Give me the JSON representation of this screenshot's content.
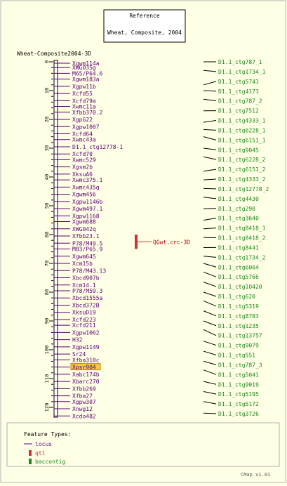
{
  "reference": {
    "heading": "Reference",
    "subtitle": "Wheat, Composite, 2004"
  },
  "map": {
    "title": "Wheat-Composite2004-3D",
    "scale_min": 0,
    "scale_max": 120,
    "ticks": [
      "0",
      "10",
      "20",
      "30",
      "40",
      "50",
      "60",
      "70",
      "80",
      "90",
      "100",
      "110",
      "120"
    ]
  },
  "loci": [
    {
      "name": "Xgwm114a",
      "pos": 0.5
    },
    {
      "name": "XWG035g",
      "pos": 2.0
    },
    {
      "name": "M65/P64.6",
      "pos": 4.0
    },
    {
      "name": "Xgwm183a",
      "pos": 6.0
    },
    {
      "name": "Xgpw11b",
      "pos": 8.5
    },
    {
      "name": "Xcfd55",
      "pos": 11.0
    },
    {
      "name": "Xcfd79a",
      "pos": 13.5
    },
    {
      "name": "Xwmc11a",
      "pos": 15.5
    },
    {
      "name": "Xfbb370.2",
      "pos": 17.5
    },
    {
      "name": "XgpG22",
      "pos": 20.0
    },
    {
      "name": "Xgpw1007",
      "pos": 22.5
    },
    {
      "name": "Xcfd64",
      "pos": 25.0
    },
    {
      "name": "Xwmc43a",
      "pos": 27.0
    },
    {
      "name": "D1.1_ctg12778-1",
      "pos": 29.5
    },
    {
      "name": "Xcfd70",
      "pos": 32.0
    },
    {
      "name": "Xwmc529",
      "pos": 34.0
    },
    {
      "name": "Xgsm2b",
      "pos": 36.5
    },
    {
      "name": "XksuA6",
      "pos": 39.0
    },
    {
      "name": "Xwmc375.1",
      "pos": 41.0
    },
    {
      "name": "Xwmc435g",
      "pos": 43.5
    },
    {
      "name": "Xgwm456",
      "pos": 46.0
    },
    {
      "name": "Xgpw1146b",
      "pos": 48.5
    },
    {
      "name": "Xgwm497.1",
      "pos": 51.0
    },
    {
      "name": "Xgpw1168",
      "pos": 53.5
    },
    {
      "name": "Xgwm688",
      "pos": 55.5
    },
    {
      "name": "XWG042q",
      "pos": 58.0
    },
    {
      "name": "Xfbb23.1",
      "pos": 60.5
    },
    {
      "name": "P78/M49.5",
      "pos": 63.0
    },
    {
      "name": "M83/P65.9",
      "pos": 65.0
    },
    {
      "name": "Xgwm645",
      "pos": 67.5
    },
    {
      "name": "Xcm15b",
      "pos": 70.0
    },
    {
      "name": "P78/M43.13",
      "pos": 72.5
    },
    {
      "name": "Xbcd907b",
      "pos": 75.0
    },
    {
      "name": "Xcm14.1",
      "pos": 77.5
    },
    {
      "name": "P78/M59.3",
      "pos": 79.5
    },
    {
      "name": "Xbcd1555a",
      "pos": 82.0
    },
    {
      "name": "Xbcd372B",
      "pos": 84.5
    },
    {
      "name": "XksuD19",
      "pos": 87.0
    },
    {
      "name": "Xcfd223",
      "pos": 89.5
    },
    {
      "name": "Xcfd211",
      "pos": 91.5
    },
    {
      "name": "Xgpw1062",
      "pos": 94.0
    },
    {
      "name": "H32",
      "pos": 96.5
    },
    {
      "name": "Xgpw1149",
      "pos": 99.0
    },
    {
      "name": "Sr24",
      "pos": 101.5
    },
    {
      "name": "Xfba310c",
      "pos": 103.5
    },
    {
      "name": "Xpsr904",
      "pos": 106.0,
      "highlight": true
    },
    {
      "name": "Xabc174b",
      "pos": 108.5
    },
    {
      "name": "Xbarc270",
      "pos": 111.0
    },
    {
      "name": "Xfbb269",
      "pos": 113.5
    },
    {
      "name": "Xfba27",
      "pos": 116.0
    },
    {
      "name": "Xgpw307",
      "pos": 118.0
    },
    {
      "name": "Xnwg12",
      "pos": 120.5
    },
    {
      "name": "Xcdo482",
      "pos": 123.0
    }
  ],
  "qtl": {
    "name": "QGwt.crc-3D",
    "start": 60.0,
    "end": 65.0
  },
  "contigs": [
    {
      "name": "D1.1_ctg787_1",
      "pos": 0.0
    },
    {
      "name": "D1.1_ctg1734_1",
      "pos": 3.0
    },
    {
      "name": "D1.1_ctg5743",
      "pos": 8.0
    },
    {
      "name": "D1.1_ctg4173",
      "pos": 10.0
    },
    {
      "name": "D1.1_ctg787_2",
      "pos": 13.0
    },
    {
      "name": "D1.1_ctg7512",
      "pos": 17.0
    },
    {
      "name": "D1.1_ctg4333_1",
      "pos": 21.0
    },
    {
      "name": "D1.1_ctg6228_1",
      "pos": 23.5
    },
    {
      "name": "D1.1_ctg6151_1",
      "pos": 26.0
    },
    {
      "name": "D1.1_ctg9045",
      "pos": 30.0
    },
    {
      "name": "D1.1_ctg6228_2",
      "pos": 33.0
    },
    {
      "name": "D1.1_ctg6151_2",
      "pos": 38.0
    },
    {
      "name": "D1.1_ctg4333_2",
      "pos": 41.0
    },
    {
      "name": "D1.1_ctg12778_2",
      "pos": 44.0
    },
    {
      "name": "D1.1_ctg4430",
      "pos": 47.0
    },
    {
      "name": "D1.1_ctg290",
      "pos": 51.0
    },
    {
      "name": "D1.1_ctg3640",
      "pos": 55.0
    },
    {
      "name": "D1.1_ctg8418_1",
      "pos": 58.0
    },
    {
      "name": "D1.1_ctg8418_2",
      "pos": 61.0
    },
    {
      "name": "D1.1_ctg8441",
      "pos": 64.5
    },
    {
      "name": "D1.1_ctg1734_2",
      "pos": 67.5
    },
    {
      "name": "D1.1_ctg6064",
      "pos": 70.0
    },
    {
      "name": "D1.1_ctg5766",
      "pos": 73.0
    },
    {
      "name": "D1.1_ctg10420",
      "pos": 76.5
    },
    {
      "name": "D1.1_ctg620",
      "pos": 80.0
    },
    {
      "name": "D1.1_ctg5319",
      "pos": 83.0
    },
    {
      "name": "D1.1_ctg8783",
      "pos": 86.5
    },
    {
      "name": "D1.1_ctg1235",
      "pos": 90.0
    },
    {
      "name": "D1.1_ctg13757",
      "pos": 93.0
    },
    {
      "name": "D1.1_ctg9079",
      "pos": 97.0
    },
    {
      "name": "D1.1_ctg551",
      "pos": 100.5
    },
    {
      "name": "D1.1_ctg787_3",
      "pos": 104.0
    },
    {
      "name": "D1.1_ctg5041",
      "pos": 107.0
    },
    {
      "name": "D1.1_ctg9019",
      "pos": 111.0
    },
    {
      "name": "D1.1_ctg5195",
      "pos": 114.5
    },
    {
      "name": "D1.1_ctg5172",
      "pos": 118.0
    },
    {
      "name": "D1.1_ctg3726",
      "pos": 122.0
    }
  ],
  "legend": {
    "title": "Feature Types:",
    "items": [
      {
        "label": "locus",
        "color": "#5a0078"
      },
      {
        "label": "qtl",
        "color": "#cc3333"
      },
      {
        "label": "baccontig",
        "color": "#1a8a1a"
      }
    ]
  },
  "footer": {
    "version": "CMap v1.01"
  },
  "colors": {
    "background": "#ffffe6",
    "locus": "#5a0078",
    "qtl": "#cc3333",
    "contig": "#1a8a1a",
    "highlight_fill": "#f5c842",
    "highlight_border": "#d08000",
    "frame": "#b0b0b0"
  }
}
